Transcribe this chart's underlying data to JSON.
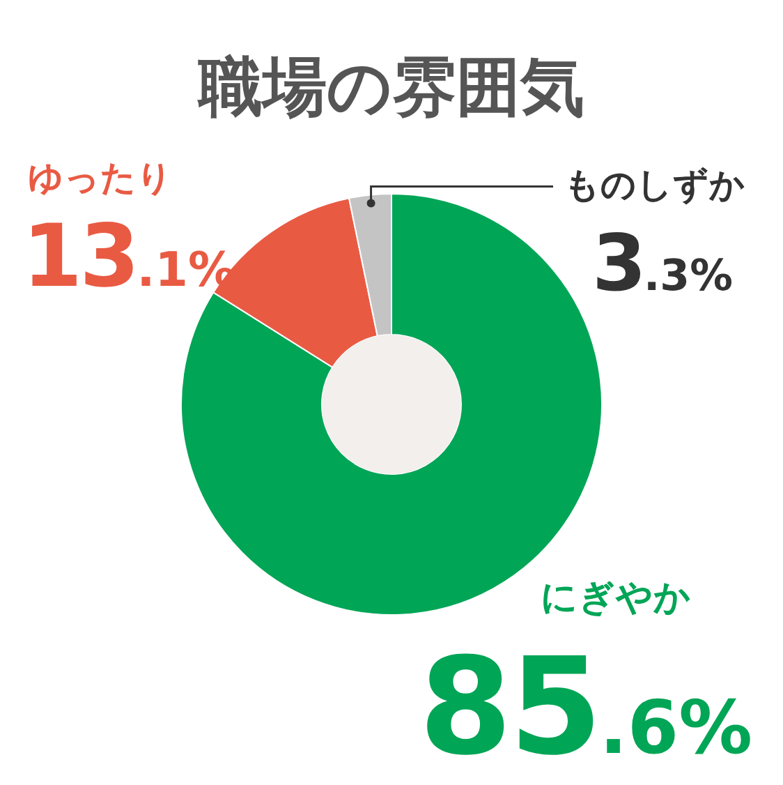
{
  "chart_data": {
    "type": "donut",
    "title": "職場の雰囲気",
    "categories": [
      "にぎやか",
      "ゆったり",
      "ものしずか"
    ],
    "values": [
      85.6,
      13.1,
      3.3
    ],
    "colors": [
      "#00a556",
      "#e95a43",
      "#c4c4c4"
    ],
    "value_labels": [
      "85.6%",
      "13.1%",
      "3.3%"
    ]
  }
}
